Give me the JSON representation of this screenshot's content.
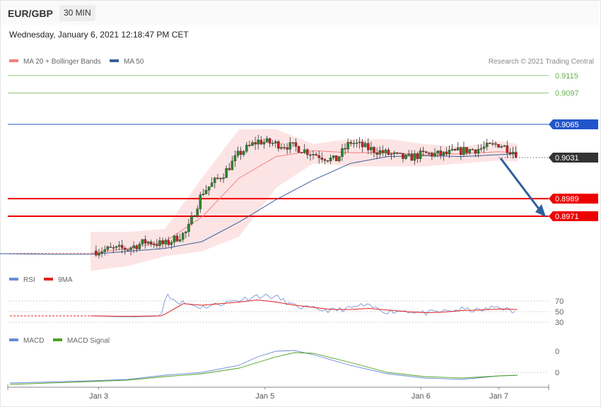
{
  "header": {
    "pair": "EUR/GBP",
    "timeframe": "30 MIN",
    "datetime": "Wednesday, January 6, 2021 12:18:47 PM CET"
  },
  "legend": {
    "ma20": "MA 20 + Bollinger Bands",
    "ma50": "MA 50",
    "copyright": "Research © 2021 Trading Central",
    "rsi": "RSI",
    "rsi_ma": "9MA",
    "macd": "MACD",
    "macd_signal": "MACD Signal"
  },
  "colors": {
    "ma20": "#f08080",
    "ma50": "#3a5f9a",
    "band": "#fde4e4",
    "bull": "#2a8a2a",
    "bear": "#cc1f1f",
    "resistance": "#6ab04c",
    "pivot": "#2255cc",
    "support": "#ee0000",
    "current": "#333333",
    "rsi": "#6a8ad6",
    "rsi_ma": "#e02020",
    "macd": "#6a8ad6",
    "macd_signal": "#4fa023",
    "arrow": "#2f5fa0"
  },
  "chart_data": [
    {
      "type": "candlestick",
      "x_labels": [
        "Jan 3",
        "Jan 5",
        "Jan 6",
        "Jan 7"
      ],
      "levels": [
        {
          "value": 0.9115,
          "label": "0.9115",
          "kind": "resistance"
        },
        {
          "value": 0.9097,
          "label": "0.9097",
          "kind": "resistance"
        },
        {
          "value": 0.9065,
          "label": "0.9065",
          "kind": "pivot"
        },
        {
          "value": 0.9031,
          "label": "0.9031",
          "kind": "current"
        },
        {
          "value": 0.8989,
          "label": "0.8989",
          "kind": "support"
        },
        {
          "value": 0.8971,
          "label": "0.8971",
          "kind": "support"
        }
      ],
      "forecast": {
        "from": 0.9031,
        "to": 0.8971
      },
      "close_path": [
        [
          0,
          0.8935
        ],
        [
          0.5,
          0.8937
        ],
        [
          1,
          0.8938
        ],
        [
          1.5,
          0.8945
        ],
        [
          2,
          0.8942
        ],
        [
          2.6,
          0.8955
        ],
        [
          3,
          0.8995
        ],
        [
          3.6,
          0.9015
        ],
        [
          4,
          0.9035
        ],
        [
          4.5,
          0.9048
        ],
        [
          5,
          0.9045
        ],
        [
          5.5,
          0.9042
        ],
        [
          6,
          0.9035
        ],
        [
          6.6,
          0.9028
        ],
        [
          7,
          0.9047
        ],
        [
          7.5,
          0.904
        ],
        [
          8,
          0.9035
        ],
        [
          8.5,
          0.903
        ],
        [
          9,
          0.9035
        ],
        [
          9.5,
          0.9034
        ],
        [
          10,
          0.9038
        ],
        [
          10.5,
          0.904
        ],
        [
          11,
          0.9045
        ],
        [
          11.5,
          0.9035
        ]
      ],
      "ma50_path": [
        [
          -7,
          0.8956
        ],
        [
          -5,
          0.8942
        ],
        [
          -3,
          0.8933
        ],
        [
          -1,
          0.8932
        ],
        [
          0,
          0.8932
        ],
        [
          1,
          0.8935
        ],
        [
          2,
          0.8938
        ],
        [
          3,
          0.8945
        ],
        [
          4,
          0.8965
        ],
        [
          5,
          0.8988
        ],
        [
          6,
          0.9008
        ],
        [
          7,
          0.9025
        ],
        [
          8,
          0.9032
        ],
        [
          9,
          0.9033
        ],
        [
          10,
          0.9032
        ],
        [
          11,
          0.9034
        ],
        [
          11.5,
          0.9035
        ]
      ],
      "ma20_path": [
        [
          0,
          0.8933
        ],
        [
          1,
          0.8938
        ],
        [
          2,
          0.8945
        ],
        [
          3,
          0.897
        ],
        [
          4,
          0.901
        ],
        [
          5,
          0.9032
        ],
        [
          6,
          0.9038
        ],
        [
          7,
          0.9036
        ],
        [
          8,
          0.9036
        ],
        [
          9,
          0.9034
        ],
        [
          10,
          0.9035
        ],
        [
          11,
          0.9037
        ],
        [
          11.5,
          0.9036
        ]
      ],
      "band_upper": [
        [
          0,
          0.8955
        ],
        [
          1,
          0.8955
        ],
        [
          2,
          0.8958
        ],
        [
          3,
          0.901
        ],
        [
          4,
          0.906
        ],
        [
          5,
          0.906
        ],
        [
          6,
          0.9045
        ],
        [
          7,
          0.905
        ],
        [
          8,
          0.905
        ],
        [
          9,
          0.9045
        ],
        [
          10,
          0.9042
        ],
        [
          11,
          0.9048
        ],
        [
          11.5,
          0.9045
        ]
      ],
      "band_lower": [
        [
          0,
          0.8915
        ],
        [
          1,
          0.892
        ],
        [
          2,
          0.893
        ],
        [
          3,
          0.8935
        ],
        [
          4,
          0.895
        ],
        [
          5,
          0.9
        ],
        [
          6,
          0.9025
        ],
        [
          7,
          0.9022
        ],
        [
          8,
          0.9022
        ],
        [
          9,
          0.9022
        ],
        [
          10,
          0.9025
        ],
        [
          11,
          0.9028
        ],
        [
          11.5,
          0.9027
        ]
      ]
    },
    {
      "type": "line",
      "name": "RSI",
      "levels": [
        70,
        50,
        30
      ],
      "rsi": [
        [
          0,
          42
        ],
        [
          1,
          40
        ],
        [
          1.6,
          41
        ],
        [
          1.9,
          42
        ],
        [
          2.05,
          85
        ],
        [
          2.3,
          70
        ],
        [
          2.6,
          65
        ],
        [
          3,
          58
        ],
        [
          3.5,
          65
        ],
        [
          4,
          72
        ],
        [
          4.5,
          80
        ],
        [
          5,
          78
        ],
        [
          5.5,
          60
        ],
        [
          6,
          55
        ],
        [
          6.5,
          52
        ],
        [
          7,
          56
        ],
        [
          7.3,
          62
        ],
        [
          7.6,
          58
        ],
        [
          8,
          50
        ],
        [
          8.5,
          52
        ],
        [
          9,
          47
        ],
        [
          9.5,
          50
        ],
        [
          10,
          54
        ],
        [
          10.5,
          52
        ],
        [
          11,
          60
        ],
        [
          11.5,
          46
        ]
      ],
      "rsi_ma": [
        [
          0,
          42
        ],
        [
          1,
          41
        ],
        [
          1.9,
          42
        ],
        [
          2,
          45
        ],
        [
          2.5,
          65
        ],
        [
          3,
          62
        ],
        [
          3.5,
          65
        ],
        [
          4,
          68
        ],
        [
          4.5,
          72
        ],
        [
          5,
          68
        ],
        [
          5.5,
          62
        ],
        [
          6,
          58
        ],
        [
          6.5,
          54
        ],
        [
          7,
          54
        ],
        [
          7.5,
          56
        ],
        [
          8,
          53
        ],
        [
          8.5,
          50
        ],
        [
          9,
          48
        ],
        [
          9.5,
          49
        ],
        [
          10,
          52
        ],
        [
          10.5,
          53
        ],
        [
          11,
          55
        ],
        [
          11.5,
          54
        ]
      ]
    },
    {
      "type": "line",
      "name": "MACD",
      "tick_labels": [
        "0",
        "0"
      ],
      "macd": [
        [
          0,
          -0.0012
        ],
        [
          1,
          -0.001
        ],
        [
          2,
          -0.0004
        ],
        [
          3,
          0.0
        ],
        [
          4,
          0.001
        ],
        [
          4.5,
          0.0022
        ],
        [
          5,
          0.003
        ],
        [
          5.5,
          0.0031
        ],
        [
          6,
          0.0025
        ],
        [
          7,
          0.001
        ],
        [
          8,
          -0.0002
        ],
        [
          9,
          -0.0008
        ],
        [
          10,
          -0.001
        ],
        [
          11,
          -0.0005
        ],
        [
          11.5,
          -0.0004
        ]
      ],
      "signal": [
        [
          0,
          -0.0013
        ],
        [
          1,
          -0.0011
        ],
        [
          2,
          -0.0006
        ],
        [
          3,
          -0.0002
        ],
        [
          4,
          0.0006
        ],
        [
          5,
          0.0022
        ],
        [
          5.5,
          0.0028
        ],
        [
          6,
          0.0027
        ],
        [
          7,
          0.0014
        ],
        [
          8,
          0.0
        ],
        [
          9,
          -0.0006
        ],
        [
          10,
          -0.0008
        ],
        [
          11,
          -0.0005
        ],
        [
          11.5,
          -0.0004
        ]
      ]
    }
  ]
}
